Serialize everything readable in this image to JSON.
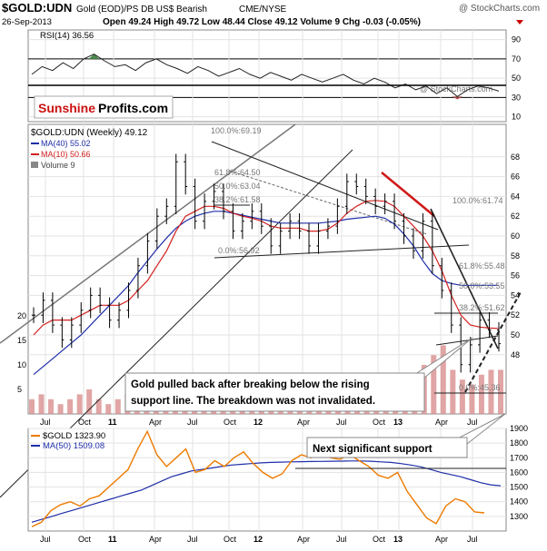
{
  "header": {
    "symbol": "$GOLD:UDN",
    "description": "Gold (EOD)/PS DB US$ Bearish",
    "exchange": "CME/NYSE",
    "copyright": "@ StockCharts.com",
    "date": "26-Sep-2013",
    "quote": "Open 49.24  High 49.72  Low 48.44  Close 49.12  Volume 9  Chg -0.03 (-0.05%)",
    "down_marker_color": "#cc0000"
  },
  "rsi_panel": {
    "label": "RSI(14) 36.56",
    "watermark": "@ StockCharts.com",
    "y_ticks": [
      "90",
      "70",
      "50",
      "30",
      "10"
    ],
    "overbought": 70,
    "oversold": 30,
    "series": [
      54,
      62,
      58,
      66,
      60,
      70,
      75,
      68,
      62,
      64,
      58,
      66,
      70,
      64,
      60,
      55,
      62,
      58,
      52,
      56,
      60,
      54,
      50,
      56,
      52,
      48,
      54,
      50,
      46,
      50,
      54,
      48,
      44,
      50,
      46,
      40,
      44,
      38,
      42,
      34,
      40,
      31,
      38,
      42,
      40,
      36.56
    ]
  },
  "brand": {
    "sunshine": "Sunshine",
    "profits": "Profits.com",
    "sunshine_color": "#cc1111"
  },
  "main_panel": {
    "legend": {
      "title": "$GOLD:UDN (Weekly) 49.12",
      "ma40": "MA(40) 55.02",
      "ma10": "MA(10) 50.66",
      "volume": "Volume 9"
    },
    "y_ticks": [
      "68",
      "66",
      "64",
      "62",
      "60",
      "58",
      "56",
      "54",
      "52",
      "50",
      "48"
    ],
    "volume_ticks": [
      "20",
      "15",
      "10",
      "5"
    ],
    "fib_labels": [
      "100.0%:69.19",
      "61.8%:64.50",
      "50.0%:63.04",
      "38.2%:61.58",
      "0.0%:56.92",
      "100.0%:61.74",
      "61.8%:55.48",
      "50.0%:53.55",
      "38.2%:51.62",
      "0.0%:45.36"
    ],
    "price_series": [
      52,
      53.5,
      51,
      49.5,
      51,
      52.5,
      54,
      53,
      51.5,
      52.5,
      54.5,
      57,
      59.5,
      62,
      63,
      67.5,
      65,
      61.5,
      63.5,
      64.5,
      62.5,
      60.5,
      61.5,
      62.5,
      61,
      59,
      60.5,
      61.5,
      60.5,
      59,
      60.5,
      61,
      63,
      65.5,
      65,
      64,
      63,
      63.5,
      61.5,
      60,
      58.5,
      61.5,
      57,
      54.5,
      51,
      47,
      49,
      51.5,
      50.5,
      49.12
    ],
    "ma40_series": [
      46,
      46.8,
      47.6,
      48.4,
      49.2,
      50,
      51,
      52,
      53,
      54,
      55,
      56.3,
      57.5,
      58.7,
      59.8,
      60.8,
      61.5,
      62,
      62.3,
      62.5,
      62.5,
      62.3,
      62.1,
      61.9,
      61.7,
      61.5,
      61.3,
      61.3,
      61.3,
      61.3,
      61.3,
      61.4,
      61.5,
      61.7,
      61.8,
      61.9,
      62,
      61.8,
      61.2,
      60.2,
      59,
      57.5,
      56.2,
      55.5,
      55.2,
      55.02,
      55.02,
      55.02,
      55.02,
      55.02
    ],
    "ma10_series": [
      50,
      51,
      51.5,
      51.5,
      51.5,
      52,
      52.5,
      53,
      53,
      53,
      53.5,
      54.5,
      55.5,
      57,
      58.5,
      60.5,
      62,
      62.5,
      63,
      63,
      62.8,
      62.3,
      62,
      61.8,
      61.5,
      61,
      60.8,
      60.8,
      60.8,
      60.5,
      60.5,
      60.7,
      61.3,
      62.3,
      63,
      63.5,
      63.6,
      63.5,
      63,
      62,
      61,
      60,
      58.5,
      56.5,
      54,
      52,
      51,
      50.8,
      50.7,
      50.66
    ],
    "volume_series": [
      3,
      4,
      3,
      2,
      3,
      4,
      5,
      3,
      2,
      3,
      4,
      4,
      5,
      6,
      5,
      4,
      3,
      3,
      4,
      3,
      2,
      3,
      2,
      3,
      4,
      3,
      2,
      3,
      4,
      3,
      2,
      3,
      4,
      5,
      4,
      3,
      3,
      4,
      5,
      6,
      8,
      10,
      12,
      14,
      9,
      7,
      6,
      8,
      9,
      9
    ],
    "callout": {
      "line1": "Gold pulled back after breaking below the rising",
      "line2": "support line. The breakdown was not invalidated."
    }
  },
  "gold_panel": {
    "legend_gold": "$GOLD 1323.90",
    "legend_ma": "MA(50) 1509.08",
    "y_ticks": [
      "1900",
      "1800",
      "1700",
      "1600",
      "1500",
      "1400",
      "1300"
    ],
    "callout": "Next significant support",
    "gold_series": [
      1230,
      1260,
      1340,
      1380,
      1400,
      1370,
      1420,
      1440,
      1500,
      1560,
      1620,
      1760,
      1880,
      1720,
      1640,
      1700,
      1760,
      1600,
      1620,
      1680,
      1640,
      1700,
      1740,
      1660,
      1600,
      1560,
      1590,
      1680,
      1720,
      1700,
      1760,
      1700,
      1690,
      1720,
      1680,
      1640,
      1580,
      1560,
      1600,
      1470,
      1380,
      1290,
      1250,
      1370,
      1420,
      1400,
      1330,
      1323.9
    ],
    "ma50_series": [
      1260,
      1280,
      1300,
      1320,
      1340,
      1360,
      1380,
      1400,
      1420,
      1440,
      1460,
      1480,
      1510,
      1540,
      1570,
      1590,
      1610,
      1620,
      1630,
      1640,
      1650,
      1655,
      1660,
      1665,
      1668,
      1670,
      1672,
      1673,
      1674,
      1675,
      1676,
      1677,
      1678,
      1678,
      1676,
      1672,
      1668,
      1660,
      1650,
      1638,
      1620,
      1600,
      1585,
      1570,
      1550,
      1530,
      1515,
      1509.08
    ]
  },
  "x_axis": {
    "labels": [
      "Jul",
      "Oct",
      "11",
      "Apr",
      "Jul",
      "Oct",
      "12",
      "Apr",
      "Jul",
      "Oct",
      "13",
      "Apr",
      "Jul"
    ]
  },
  "colors": {
    "price_bar": "#000000",
    "ma40": "#1f2ea8",
    "ma10": "#d42020",
    "volume": "#d98f8f",
    "gold_line": "#ee7a00",
    "rsi_line": "#222222",
    "rsi_overbought": "#4a8a4a",
    "rsi_oversold": "#a04646",
    "red_trend": "#d01818"
  }
}
